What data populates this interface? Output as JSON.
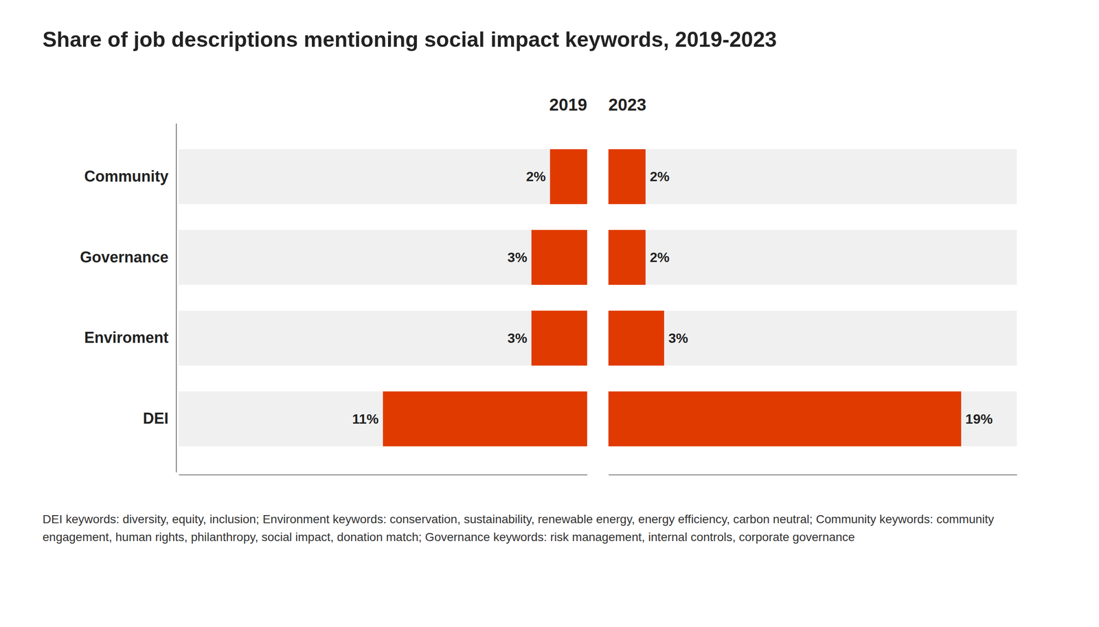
{
  "chart_data": {
    "type": "bar",
    "orientation": "horizontal",
    "title": "Share of job descriptions mentioning social impact keywords, 2019-2023",
    "categories": [
      "Community",
      "Governance",
      "Enviroment",
      "DEI"
    ],
    "series": [
      {
        "name": "2019",
        "color": "#E03A00",
        "values": [
          2,
          3,
          3,
          11
        ],
        "value_labels": [
          "2%",
          "3%",
          "3%",
          "11%"
        ]
      },
      {
        "name": "2023",
        "color": "#E03A00",
        "values": [
          2,
          2,
          3,
          19
        ],
        "value_labels": [
          "2%",
          "2%",
          "3%",
          "19%"
        ]
      }
    ],
    "xlim": [
      0,
      22
    ],
    "tick_labels": false,
    "grid": false,
    "data_labels": true,
    "annotations": [
      "DEI keywords: diversity, equity, inclusion; Environment keywords: conservation, sustainability, renewable energy, energy efficiency, carbon neutral; Community keywords: community engagement, human rights, philanthropy, social impact, donation match; Governance keywords: risk management, internal controls, corporate governance"
    ]
  }
}
